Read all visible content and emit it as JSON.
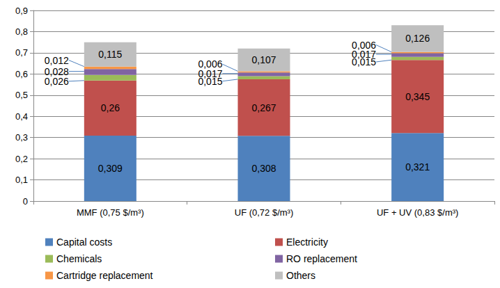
{
  "chart_data": {
    "type": "bar",
    "stacked": true,
    "data_labels": true,
    "grid": true,
    "legend": "bottom",
    "categories": [
      "MMF (0,75 $/m³)",
      "UF (0,72 $/m³)",
      "UF + UV (0,83 $/m³)"
    ],
    "ylim": [
      0,
      0.9
    ],
    "yticks": [
      0,
      {
        "value": 0.1,
        "label": "0,1"
      },
      {
        "value": 0.2,
        "label": "0,2"
      },
      {
        "value": 0.3,
        "label": "0,3"
      },
      {
        "value": 0.4,
        "label": "0,4"
      },
      {
        "value": 0.5,
        "label": "0,5"
      },
      {
        "value": 0.6,
        "label": "0,6"
      },
      {
        "value": 0.7,
        "label": "0,7"
      },
      {
        "value": 0.8,
        "label": "0,8"
      },
      {
        "value": 0.9,
        "label": "0,9"
      }
    ],
    "series": [
      {
        "name": "Capital costs",
        "color": "#4f81bd",
        "values": [
          0.309,
          0.308,
          0.321
        ],
        "value_labels": [
          "0,309",
          "0,308",
          "0,321"
        ]
      },
      {
        "name": "Electricity",
        "color": "#c0504d",
        "values": [
          0.26,
          0.267,
          0.345
        ],
        "value_labels": [
          "0,26",
          "0,267",
          "0,345"
        ]
      },
      {
        "name": "Chemicals",
        "color": "#9bbb59",
        "values": [
          0.026,
          0.015,
          0.015
        ],
        "value_labels": [
          "0,026",
          "0,015",
          "0,015"
        ]
      },
      {
        "name": "RO replacement",
        "color": "#8064a2",
        "values": [
          0.028,
          0.017,
          0.017
        ],
        "value_labels": [
          "0,028",
          "0,017",
          "0,017"
        ]
      },
      {
        "name": "Cartridge replacement",
        "color": "#f79646",
        "values": [
          0.012,
          0.006,
          0.006
        ],
        "value_labels": [
          "0,012",
          "0,006",
          "0,006"
        ]
      },
      {
        "name": "Others",
        "color": "#bfbfbf",
        "values": [
          0.115,
          0.107,
          0.126
        ],
        "value_labels": [
          "0,115",
          "0,107",
          "0,126"
        ]
      }
    ]
  }
}
